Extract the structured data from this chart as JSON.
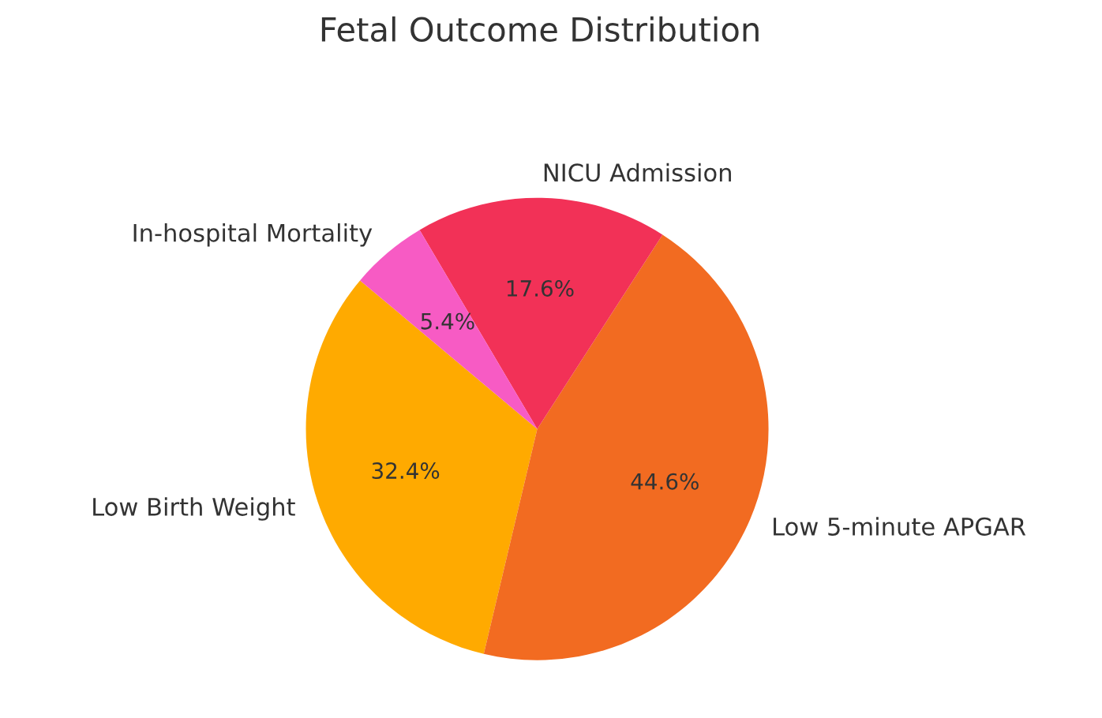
{
  "chart_data": {
    "type": "pie",
    "title": "Fetal Outcome Distribution",
    "categories": [
      "Low Birth Weight",
      "Low 5-minute APGAR",
      "NICU Admission",
      "In-hospital Mortality"
    ],
    "values": [
      32.4,
      44.6,
      17.6,
      5.4
    ],
    "value_labels": [
      "32.4%",
      "44.6%",
      "17.6%",
      "5.4%"
    ],
    "colors": [
      "#ffaa00",
      "#f26b21",
      "#f23157",
      "#f75bc4"
    ]
  }
}
